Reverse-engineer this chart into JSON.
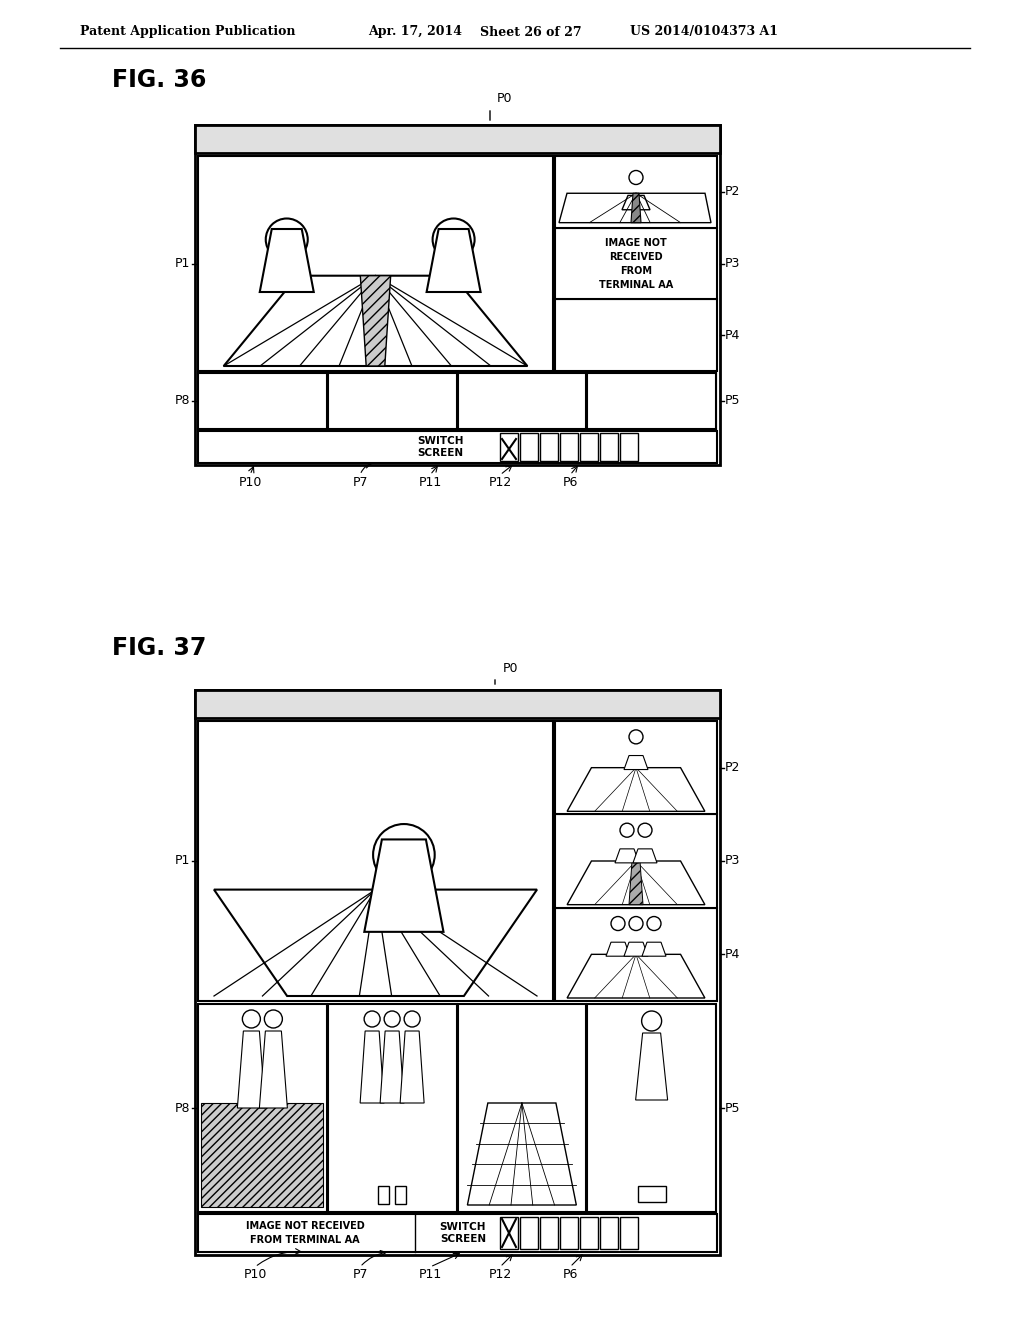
{
  "bg_color": "#ffffff",
  "header_text": "Patent Application Publication",
  "header_date": "Apr. 17, 2014",
  "header_sheet": "Sheet 26 of 27",
  "header_patent": "US 2014/0104373 A1",
  "fig36_label": "FIG. 36",
  "fig37_label": "FIG. 37",
  "lbl_P0": "P0",
  "lbl_P1": "P1",
  "lbl_P2": "P2",
  "lbl_P3": "P3",
  "lbl_P4": "P4",
  "lbl_P5": "P5",
  "lbl_P6": "P6",
  "lbl_P7": "P7",
  "lbl_P8": "P8",
  "lbl_P10": "P10",
  "lbl_P11": "P11",
  "lbl_P12": "P12",
  "switch_screen": "SWITCH\nSCREEN",
  "image_not_received": "IMAGE NOT\nRECEIVED\nFROM\nTERMINAL AA",
  "image_not_received2": "IMAGE NOT RECEIVED\nFROM TERMINAL AA"
}
